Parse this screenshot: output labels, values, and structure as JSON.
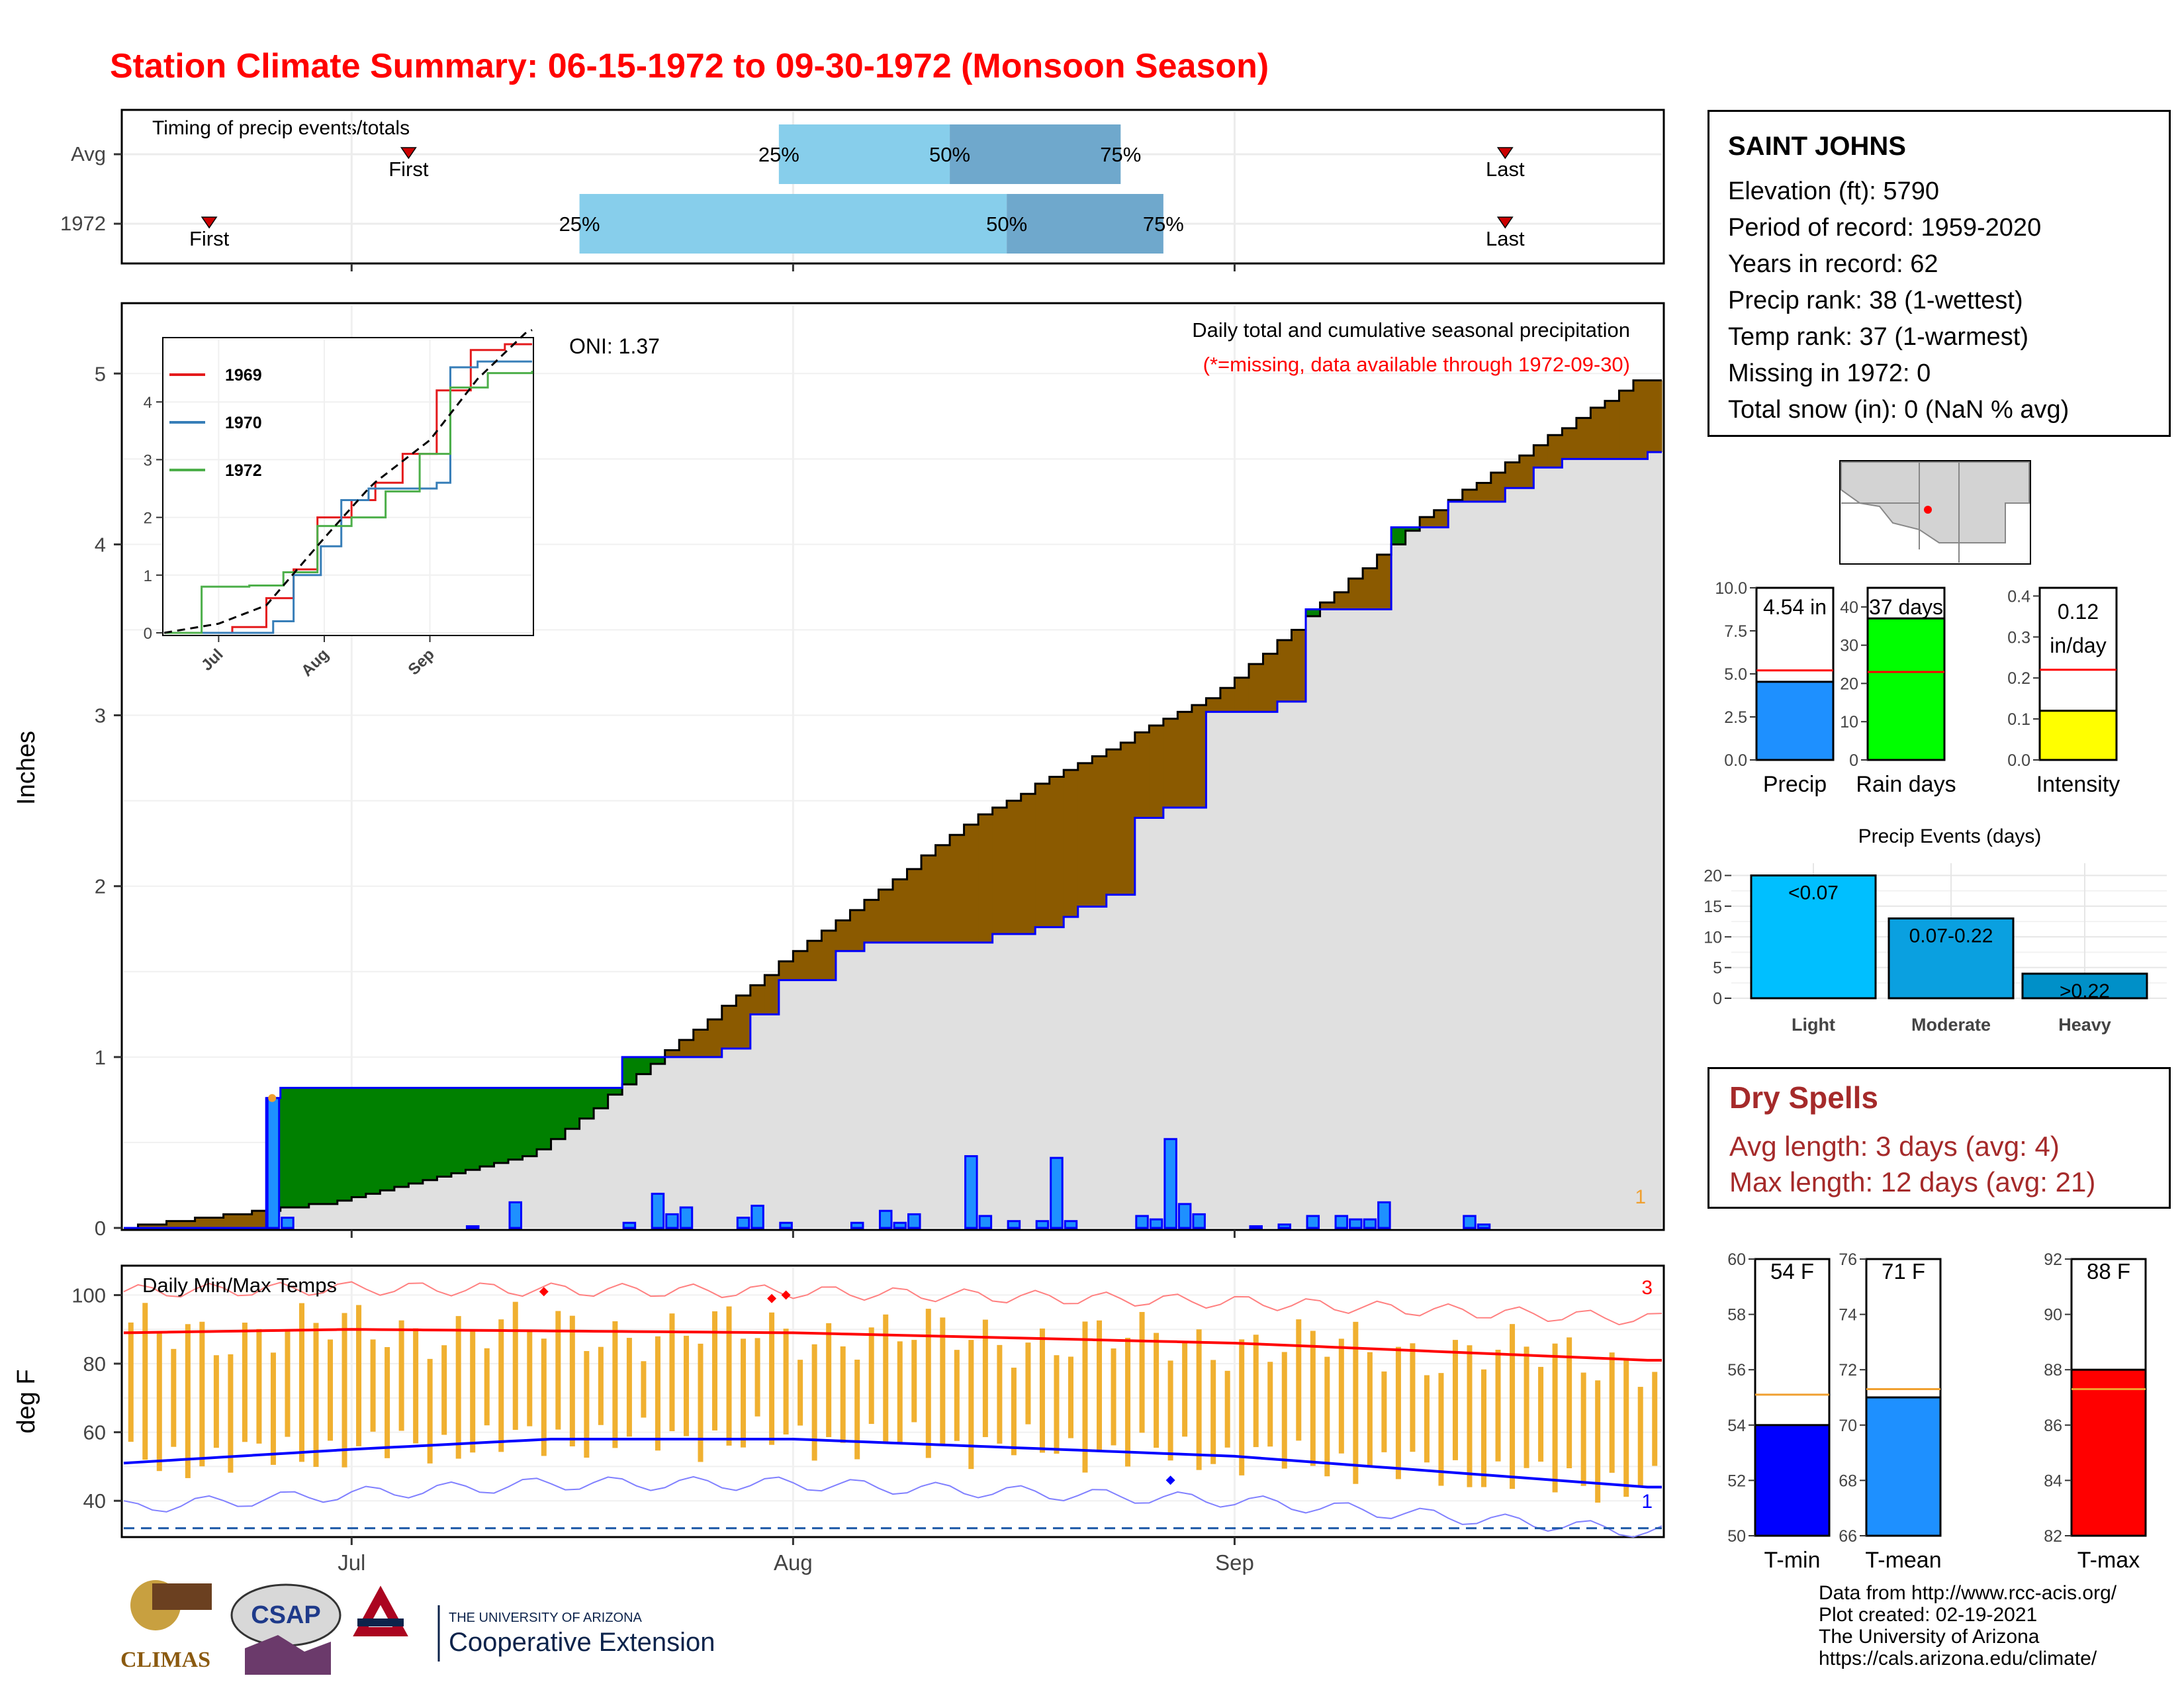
{
  "title": "Station Climate Summary: 06-15-1972 to 09-30-1972 (Monsoon Season)",
  "colors": {
    "title": "#ff0000",
    "cumulative_above_avg": "#008000",
    "cumulative_below_avg": "#8b5a00",
    "cumulative_fill": "#e0e0e0",
    "daily_bar": "#1e90ff",
    "daily_outline": "#0000ff",
    "avg_line": "#ff0000",
    "timing_light": "#87ceeb",
    "timing_dark": "#6fa8cc",
    "temp_bar": "#f0b030",
    "tmax_line": "#ff0000",
    "tmin_line": "#0000ff",
    "dry_spells": "#a52a2a"
  },
  "timing": {
    "title": "Timing of precip events/totals",
    "rows": [
      {
        "label": "Avg",
        "first": "First",
        "last": "Last",
        "q25": "25%",
        "q50": "50%",
        "q75": "75%",
        "first_day": 20,
        "q25_day": 46,
        "q50_day": 58,
        "q75_day": 70,
        "last_day": 97
      },
      {
        "label": "1972",
        "first": "First",
        "last": "Last",
        "q25": "25%",
        "q50": "50%",
        "q75": "75%",
        "first_day": 6,
        "q25_day": 32,
        "q50_day": 62,
        "q75_day": 73,
        "last_day": 97
      }
    ]
  },
  "main_chart": {
    "ylabel": "Inches",
    "header": "Daily total and cumulative seasonal precipitation",
    "subheader": "(*=missing, data available through 1972-09-30)",
    "oni": "ONI: 1.37",
    "corner_note": "1",
    "yticks": [
      "0",
      "1",
      "2",
      "3",
      "4",
      "5"
    ],
    "xticks": [
      "Jul",
      "Aug",
      "Sep"
    ]
  },
  "inset": {
    "legend": [
      "1969",
      "1970",
      "1972"
    ],
    "yticks": [
      "0",
      "1",
      "2",
      "3",
      "4"
    ],
    "xticks": [
      "Jul",
      "Aug",
      "Sep"
    ]
  },
  "temp_chart": {
    "title": "Daily Min/Max Temps",
    "ylabel": "deg F",
    "yticks": [
      "40",
      "60",
      "80",
      "100"
    ],
    "xticks": [
      "Jul",
      "Aug",
      "Sep"
    ],
    "count_hot": "3",
    "count_cold": "1"
  },
  "station": {
    "name": "SAINT JOHNS",
    "elevation": "Elevation (ft): 5790",
    "period": "Period of record: 1959-2020",
    "years": "Years in record: 62",
    "precip_rank": "Precip rank: 38 (1-wettest)",
    "temp_rank": "Temp rank: 37 (1-warmest)",
    "missing": "Missing in 1972: 0",
    "snow": "Total snow (in): 0 (NaN % avg)"
  },
  "summary_bars": [
    {
      "name": "Precip",
      "label": "4.54 in",
      "value": 4.54,
      "avg": 5.2,
      "ymax": 10,
      "yticks": [
        "0.0",
        "2.5",
        "5.0",
        "7.5",
        "10.0"
      ],
      "color": "#1e90ff"
    },
    {
      "name": "Rain days",
      "label": "37 days",
      "value": 37,
      "avg": 23,
      "ymax": 45,
      "yticks": [
        "0",
        "10",
        "20",
        "30",
        "40"
      ],
      "color": "#00ff00"
    },
    {
      "name": "Intensity",
      "label": "0.12",
      "label2": "in/day",
      "value": 0.12,
      "avg": 0.22,
      "ymax": 0.42,
      "yticks": [
        "0.0",
        "0.1",
        "0.2",
        "0.3",
        "0.4"
      ],
      "color": "#ffff00"
    }
  ],
  "precip_events": {
    "title": "Precip Events (days)",
    "yticks": [
      "0",
      "5",
      "10",
      "15",
      "20"
    ],
    "bars": [
      {
        "category": "Light",
        "label": "<0.07",
        "value": 20,
        "color": "#00bfff"
      },
      {
        "category": "Moderate",
        "label": "0.07-0.22",
        "value": 13,
        "color": "#0aa0e0"
      },
      {
        "category": "Heavy",
        "label": ">0.22",
        "value": 4,
        "color": "#0090c8"
      }
    ]
  },
  "dry_spells": {
    "title": "Dry Spells",
    "avg_length": "Avg length: 3 days (avg: 4)",
    "max_length": "Max length: 12 days (avg: 21)"
  },
  "temp_summary": [
    {
      "name": "T-min",
      "label": "54 F",
      "value": 54,
      "avg": 55.1,
      "ymin": 50,
      "ymax": 60,
      "yticks": [
        "50",
        "52",
        "54",
        "56",
        "58",
        "60"
      ],
      "color": "#0000ff"
    },
    {
      "name": "T-mean",
      "label": "71 F",
      "value": 71,
      "avg": 71.3,
      "ymin": 66,
      "ymax": 76,
      "yticks": [
        "66",
        "68",
        "70",
        "72",
        "74",
        "76"
      ],
      "color": "#1e90ff"
    },
    {
      "name": "T-max",
      "label": "88 F",
      "value": 88,
      "avg": 87.3,
      "ymin": 82,
      "ymax": 92,
      "yticks": [
        "82",
        "84",
        "86",
        "88",
        "90",
        "92"
      ],
      "color": "#ff0000"
    }
  ],
  "credits": [
    "Data from http://www.rcc-acis.org/",
    "Plot created: 02-19-2021",
    "The University of Arizona",
    "https://cals.arizona.edu/climate/"
  ],
  "logos": {
    "climas": "CLIMAS",
    "csap": "CSAP",
    "ua_small": "THE UNIVERSITY OF ARIZONA",
    "ua_big": "Cooperative Extension"
  },
  "chart_data": [
    {
      "type": "area",
      "title": "Daily total and cumulative seasonal precipitation",
      "ylabel": "Inches",
      "ylim": [
        0,
        5.4
      ],
      "x_start": "1972-06-15",
      "x_end": "1972-09-30",
      "cumulative_1972_breaks": [
        [
          "1972-06-15",
          0
        ],
        [
          "1972-06-25",
          0.76
        ],
        [
          "1972-06-26",
          0.82
        ],
        [
          "1972-07-20",
          1.0
        ],
        [
          "1972-07-27",
          1.05
        ],
        [
          "1972-07-29",
          1.25
        ],
        [
          "1972-07-31",
          1.45
        ],
        [
          "1972-08-04",
          1.62
        ],
        [
          "1972-08-06",
          1.67
        ],
        [
          "1972-08-15",
          1.72
        ],
        [
          "1972-08-18",
          1.76
        ],
        [
          "1972-08-20",
          1.82
        ],
        [
          "1972-08-21",
          1.88
        ],
        [
          "1972-08-23",
          1.95
        ],
        [
          "1972-08-25",
          2.4
        ],
        [
          "1972-08-27",
          2.46
        ],
        [
          "1972-08-30",
          3.02
        ],
        [
          "1972-09-04",
          3.08
        ],
        [
          "1972-09-06",
          3.62
        ],
        [
          "1972-09-12",
          4.1
        ],
        [
          "1972-09-16",
          4.25
        ],
        [
          "1972-09-20",
          4.33
        ],
        [
          "1972-09-22",
          4.45
        ],
        [
          "1972-09-24",
          4.5
        ],
        [
          "1972-09-30",
          4.54
        ]
      ],
      "average_cumulative_breaks": [
        [
          "1972-06-15",
          0
        ],
        [
          "1972-07-01",
          0.15
        ],
        [
          "1972-07-15",
          0.45
        ],
        [
          "1972-08-01",
          1.55
        ],
        [
          "1972-08-15",
          2.42
        ],
        [
          "1972-09-01",
          3.15
        ],
        [
          "1972-09-15",
          4.15
        ],
        [
          "1972-09-30",
          4.95
        ]
      ],
      "daily_precip": [
        [
          "1972-06-25",
          0.76
        ],
        [
          "1972-06-26",
          0.06
        ],
        [
          "1972-07-09",
          0.01
        ],
        [
          "1972-07-12",
          0.15
        ],
        [
          "1972-07-20",
          0.03
        ],
        [
          "1972-07-22",
          0.2
        ],
        [
          "1972-07-23",
          0.08
        ],
        [
          "1972-07-24",
          0.12
        ],
        [
          "1972-07-28",
          0.06
        ],
        [
          "1972-07-29",
          0.13
        ],
        [
          "1972-07-31",
          0.03
        ],
        [
          "1972-08-05",
          0.03
        ],
        [
          "1972-08-07",
          0.1
        ],
        [
          "1972-08-08",
          0.03
        ],
        [
          "1972-08-09",
          0.08
        ],
        [
          "1972-08-13",
          0.42
        ],
        [
          "1972-08-14",
          0.07
        ],
        [
          "1972-08-16",
          0.04
        ],
        [
          "1972-08-18",
          0.04
        ],
        [
          "1972-08-19",
          0.41
        ],
        [
          "1972-08-20",
          0.04
        ],
        [
          "1972-08-25",
          0.07
        ],
        [
          "1972-08-26",
          0.05
        ],
        [
          "1972-08-27",
          0.52
        ],
        [
          "1972-08-28",
          0.14
        ],
        [
          "1972-08-29",
          0.08
        ],
        [
          "1972-09-02",
          0.01
        ],
        [
          "1972-09-04",
          0.02
        ],
        [
          "1972-09-06",
          0.07
        ],
        [
          "1972-09-08",
          0.07
        ],
        [
          "1972-09-09",
          0.05
        ],
        [
          "1972-09-10",
          0.05
        ],
        [
          "1972-09-11",
          0.15
        ],
        [
          "1972-09-17",
          0.07
        ],
        [
          "1972-09-18",
          0.02
        ]
      ]
    },
    {
      "type": "line",
      "title": "Daily Min/Max Temps",
      "ylabel": "deg F",
      "ylim": [
        30,
        108
      ],
      "avg_tmax_breaks": [
        [
          "1972-06-15",
          89
        ],
        [
          "1972-07-01",
          90
        ],
        [
          "1972-08-01",
          89
        ],
        [
          "1972-09-01",
          86
        ],
        [
          "1972-09-30",
          81
        ]
      ],
      "avg_tmin_breaks": [
        [
          "1972-06-15",
          51
        ],
        [
          "1972-07-01",
          55
        ],
        [
          "1972-07-15",
          58
        ],
        [
          "1972-08-01",
          58
        ],
        [
          "1972-09-01",
          53
        ],
        [
          "1972-09-30",
          44
        ]
      ],
      "record_threshold": 32
    }
  ]
}
